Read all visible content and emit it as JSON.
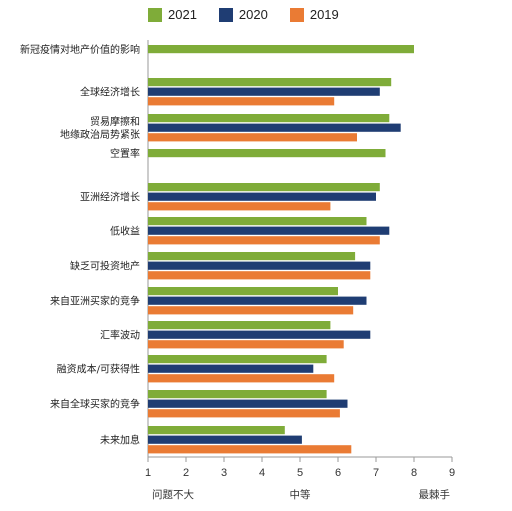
{
  "colors": {
    "2021": "#7fac39",
    "2020": "#1f3d73",
    "2019": "#ea7b34"
  },
  "chart_data": {
    "type": "bar",
    "orientation": "horizontal",
    "categories": [
      "新冠疫情对地产价值的影响",
      "全球经济增长",
      "贸易摩擦和\n地缘政治局势紧张",
      "空置率",
      "亚洲经济增长",
      "低收益",
      "缺乏可投资地产",
      "来自亚洲买家的竞争",
      "汇率波动",
      "融资成本/可获得性",
      "来自全球买家的竞争",
      "未来加息"
    ],
    "series": [
      {
        "name": "2021",
        "values": [
          8.0,
          7.4,
          7.35,
          7.25,
          7.1,
          6.75,
          6.45,
          6.0,
          5.8,
          5.7,
          5.7,
          4.6
        ]
      },
      {
        "name": "2020",
        "values": [
          null,
          7.1,
          7.65,
          null,
          7.0,
          7.35,
          6.85,
          6.75,
          6.85,
          5.35,
          6.25,
          5.05
        ]
      },
      {
        "name": "2019",
        "values": [
          null,
          5.9,
          6.5,
          null,
          5.8,
          7.1,
          6.85,
          6.4,
          6.15,
          5.9,
          6.05,
          6.35
        ]
      }
    ],
    "xlim": [
      1,
      9
    ],
    "xticks": [
      1,
      2,
      3,
      4,
      5,
      6,
      7,
      8,
      9
    ],
    "x_scale_labels": [
      "问题不大",
      "中等",
      "最棘手"
    ],
    "legend": [
      "2021",
      "2020",
      "2019"
    ],
    "legend_position": "top",
    "grid": false
  }
}
